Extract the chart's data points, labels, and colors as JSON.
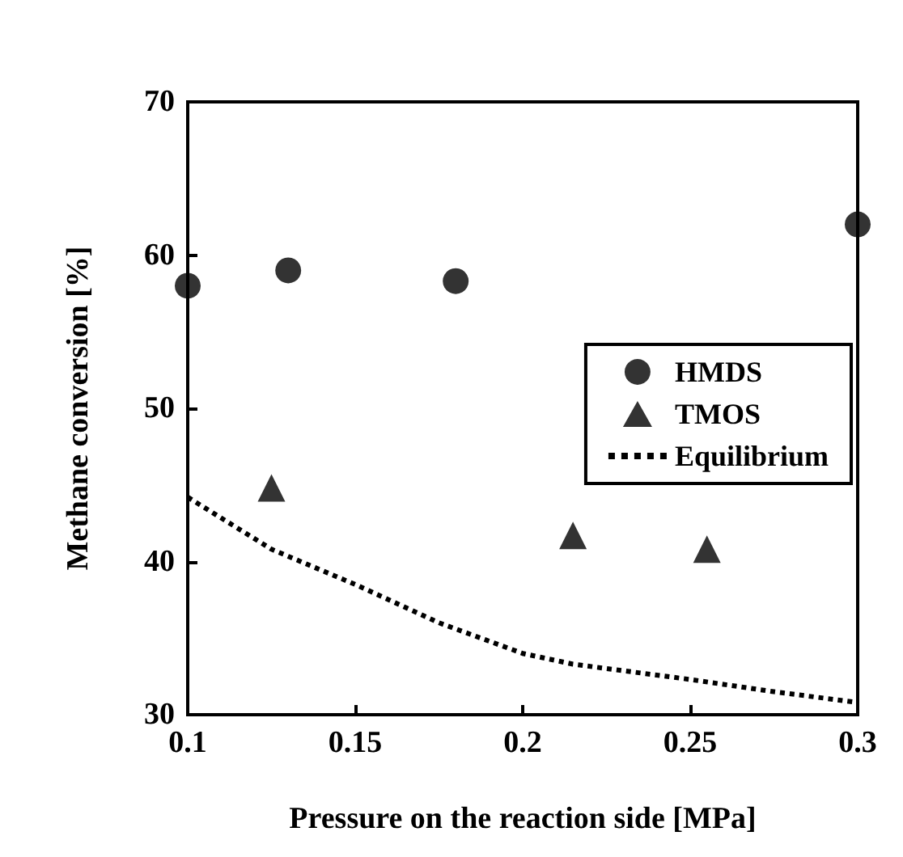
{
  "chart_data": {
    "type": "scatter",
    "xlabel": "Pressure on the reaction side [MPa]",
    "ylabel": "Methane conversion [%]",
    "xlim": [
      0.1,
      0.3
    ],
    "xticks": [
      0.1,
      0.15,
      0.2,
      0.25,
      0.3
    ],
    "ylim": [
      30,
      70
    ],
    "yticks": [
      30,
      40,
      50,
      60,
      70
    ],
    "grid": false,
    "legend": "right",
    "series": [
      {
        "name": "HMDS",
        "type": "scatter",
        "marker": "circle",
        "color": "#000000",
        "x": [
          0.1,
          0.13,
          0.18,
          0.3
        ],
        "values": [
          58,
          59,
          58.3,
          62
        ]
      },
      {
        "name": "TMOS",
        "type": "scatter",
        "marker": "triangle",
        "color": "#000000",
        "x": [
          0.125,
          0.215,
          0.255
        ],
        "values": [
          44.8,
          41.7,
          40.8
        ]
      },
      {
        "name": "Equilibrium",
        "type": "line",
        "marker": "none",
        "line_style": "dotted",
        "color": "#000000",
        "x": [
          0.1,
          0.125,
          0.15,
          0.175,
          0.2,
          0.215,
          0.25,
          0.275,
          0.3
        ],
        "values": [
          44.2,
          40.8,
          38.5,
          36,
          34,
          33.3,
          32.3,
          31.5,
          30.8
        ]
      }
    ]
  }
}
